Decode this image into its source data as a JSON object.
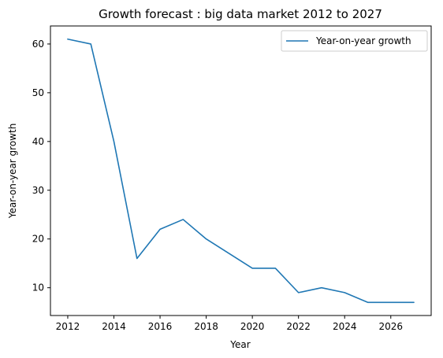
{
  "chart_data": {
    "type": "line",
    "title": "Growth forecast : big data market 2012 to 2027",
    "xlabel": "Year",
    "ylabel": "Year-on-year growth",
    "x": [
      2012,
      2013,
      2014,
      2015,
      2016,
      2017,
      2018,
      2019,
      2020,
      2021,
      2022,
      2023,
      2024,
      2025,
      2026,
      2027
    ],
    "series": [
      {
        "name": "Year-on-year growth",
        "values": [
          61,
          60,
          40,
          16,
          22,
          24,
          20,
          17,
          14,
          14,
          9,
          10,
          9,
          7,
          7,
          7
        ],
        "color": "#1f77b4"
      }
    ],
    "xticks": [
      "2012",
      "2014",
      "2016",
      "2018",
      "2020",
      "2022",
      "2024",
      "2026"
    ],
    "yticks": [
      "10",
      "20",
      "30",
      "40",
      "50",
      "60"
    ],
    "xlim": [
      2011.25,
      2027.75
    ],
    "ylim": [
      4.3,
      63.7
    ],
    "grid": false,
    "legend_position": "top-right"
  }
}
